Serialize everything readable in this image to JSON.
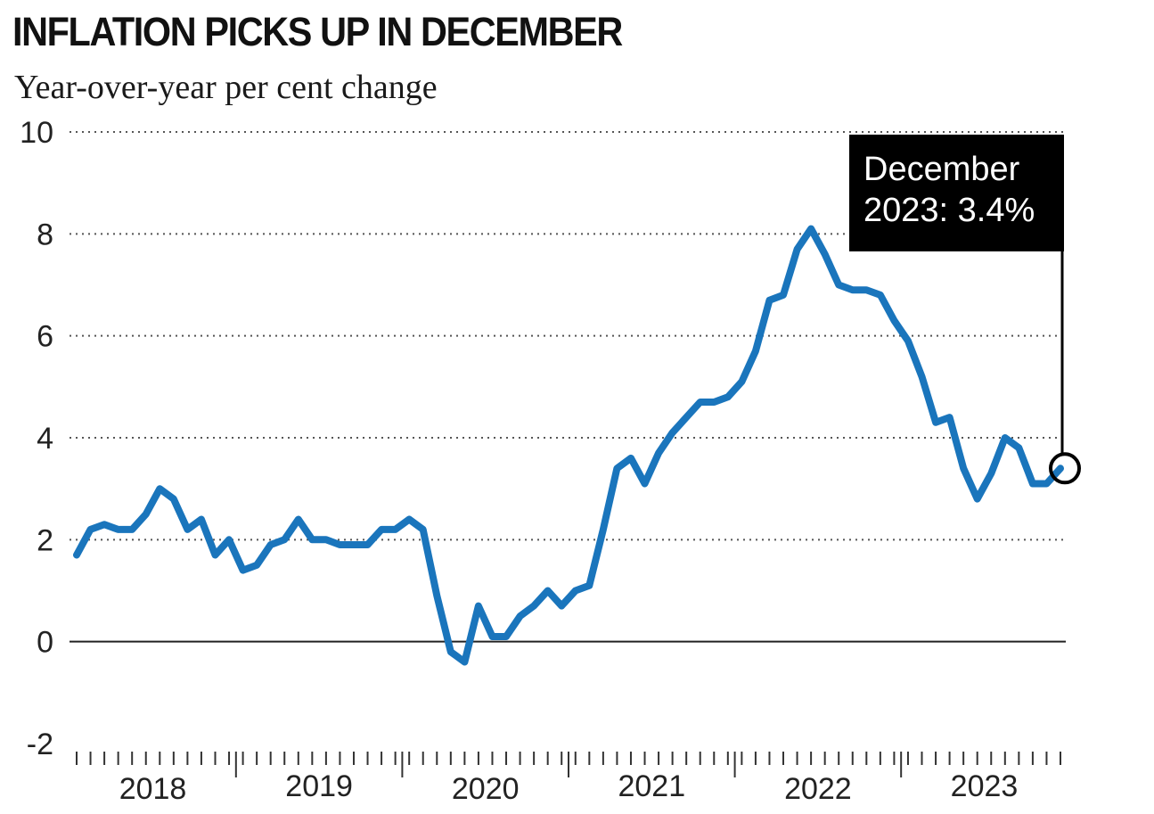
{
  "title": "INFLATION PICKS UP IN DECEMBER",
  "subtitle": "Year-over-year per cent change",
  "annotation": {
    "line1": "December",
    "line2": "2023: 3.4%"
  },
  "colors": {
    "line": "#1a75bc",
    "grid": "#555555",
    "zero_line": "#222222",
    "annotation_bg": "#000000"
  },
  "chart_data": {
    "type": "line",
    "title": "INFLATION PICKS UP IN DECEMBER",
    "subtitle": "Year-over-year per cent change",
    "ylim": [
      -2,
      10
    ],
    "yticks": [
      "10",
      "8",
      "6",
      "4",
      "2",
      "0",
      "-2"
    ],
    "xticks": [
      "2018",
      "2019",
      "2020",
      "2021",
      "2022",
      "2023"
    ],
    "grid": "dotted horizontal",
    "x_start": "2018-01",
    "x_end": "2023-12",
    "values": [
      1.7,
      2.2,
      2.3,
      2.2,
      2.2,
      2.5,
      3.0,
      2.8,
      2.2,
      2.4,
      1.7,
      2.0,
      1.4,
      1.5,
      1.9,
      2.0,
      2.4,
      2.0,
      2.0,
      1.9,
      1.9,
      1.9,
      2.2,
      2.2,
      2.4,
      2.2,
      0.9,
      -0.2,
      -0.4,
      0.7,
      0.1,
      0.1,
      0.5,
      0.7,
      1.0,
      0.7,
      1.0,
      1.1,
      2.2,
      3.4,
      3.6,
      3.1,
      3.7,
      4.1,
      4.4,
      4.7,
      4.7,
      4.8,
      5.1,
      5.7,
      6.7,
      6.8,
      7.7,
      8.1,
      7.6,
      7.0,
      6.9,
      6.9,
      6.8,
      6.3,
      5.9,
      5.2,
      4.3,
      4.4,
      3.4,
      2.8,
      3.3,
      4.0,
      3.8,
      3.1,
      3.1,
      3.4
    ],
    "highlight": {
      "label": "December 2023: 3.4%",
      "value": 3.4,
      "x": "2023-12"
    }
  }
}
